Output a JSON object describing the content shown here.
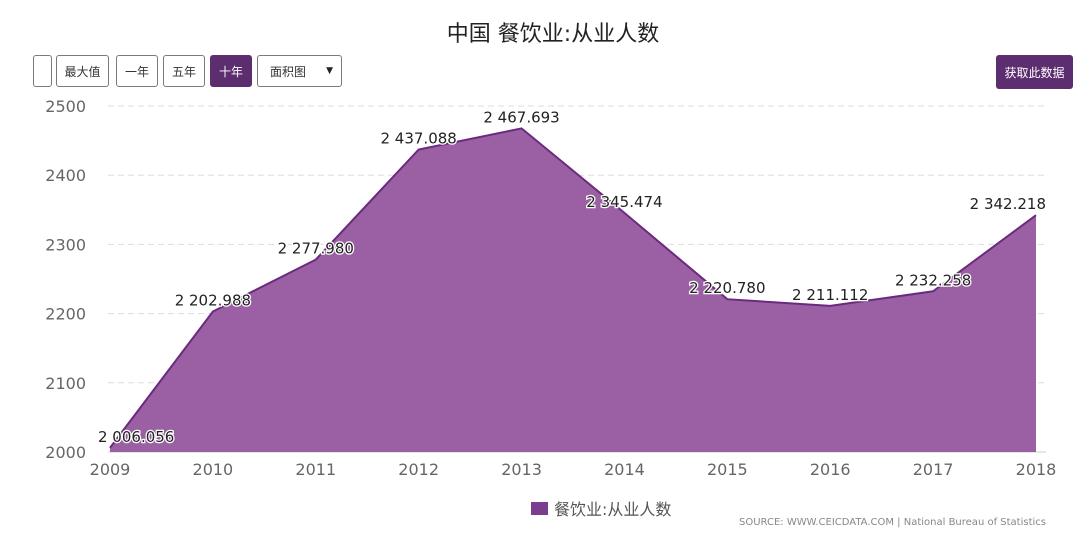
{
  "title": "中国 餐饮业:从业人数",
  "toolbar": {
    "buttons": [
      {
        "label": ""
      },
      {
        "label": "最大值"
      },
      {
        "label": "一年"
      },
      {
        "label": "五年"
      },
      {
        "label": "十年",
        "active": true
      }
    ],
    "chart_type_select": "面积图",
    "export_label": "获取此数据"
  },
  "colors": {
    "accent": "#5c2e6f",
    "area_fill": "#9b5fa3",
    "area_line": "#6a2a7e",
    "grid": "#dddddd"
  },
  "chart_data": {
    "type": "area",
    "title": "中国 餐饮业:从业人数",
    "x": [
      "2009",
      "2010",
      "2011",
      "2012",
      "2013",
      "2014",
      "2015",
      "2016",
      "2017",
      "2018"
    ],
    "series": [
      {
        "name": "餐饮业:从业人数",
        "values": [
          2006.056,
          2202.988,
          2277.98,
          2437.088,
          2467.693,
          2345.474,
          2220.78,
          2211.112,
          2232.258,
          2342.218
        ],
        "labels": [
          "2 006.056",
          "2 202.988",
          "2 277.980",
          "2 437.088",
          "2 467.693",
          "2 345.474",
          "2 220.780",
          "2 211.112",
          "2 232.258",
          "2 342.218"
        ]
      }
    ],
    "ylim": [
      2000,
      2500
    ],
    "yticks": [
      "2000",
      "2100",
      "2200",
      "2300",
      "2400",
      "2500"
    ],
    "grid": true,
    "legend_position": "bottom-center"
  },
  "source": "SOURCE: WWW.CEICDATA.COM | National Bureau of Statistics"
}
